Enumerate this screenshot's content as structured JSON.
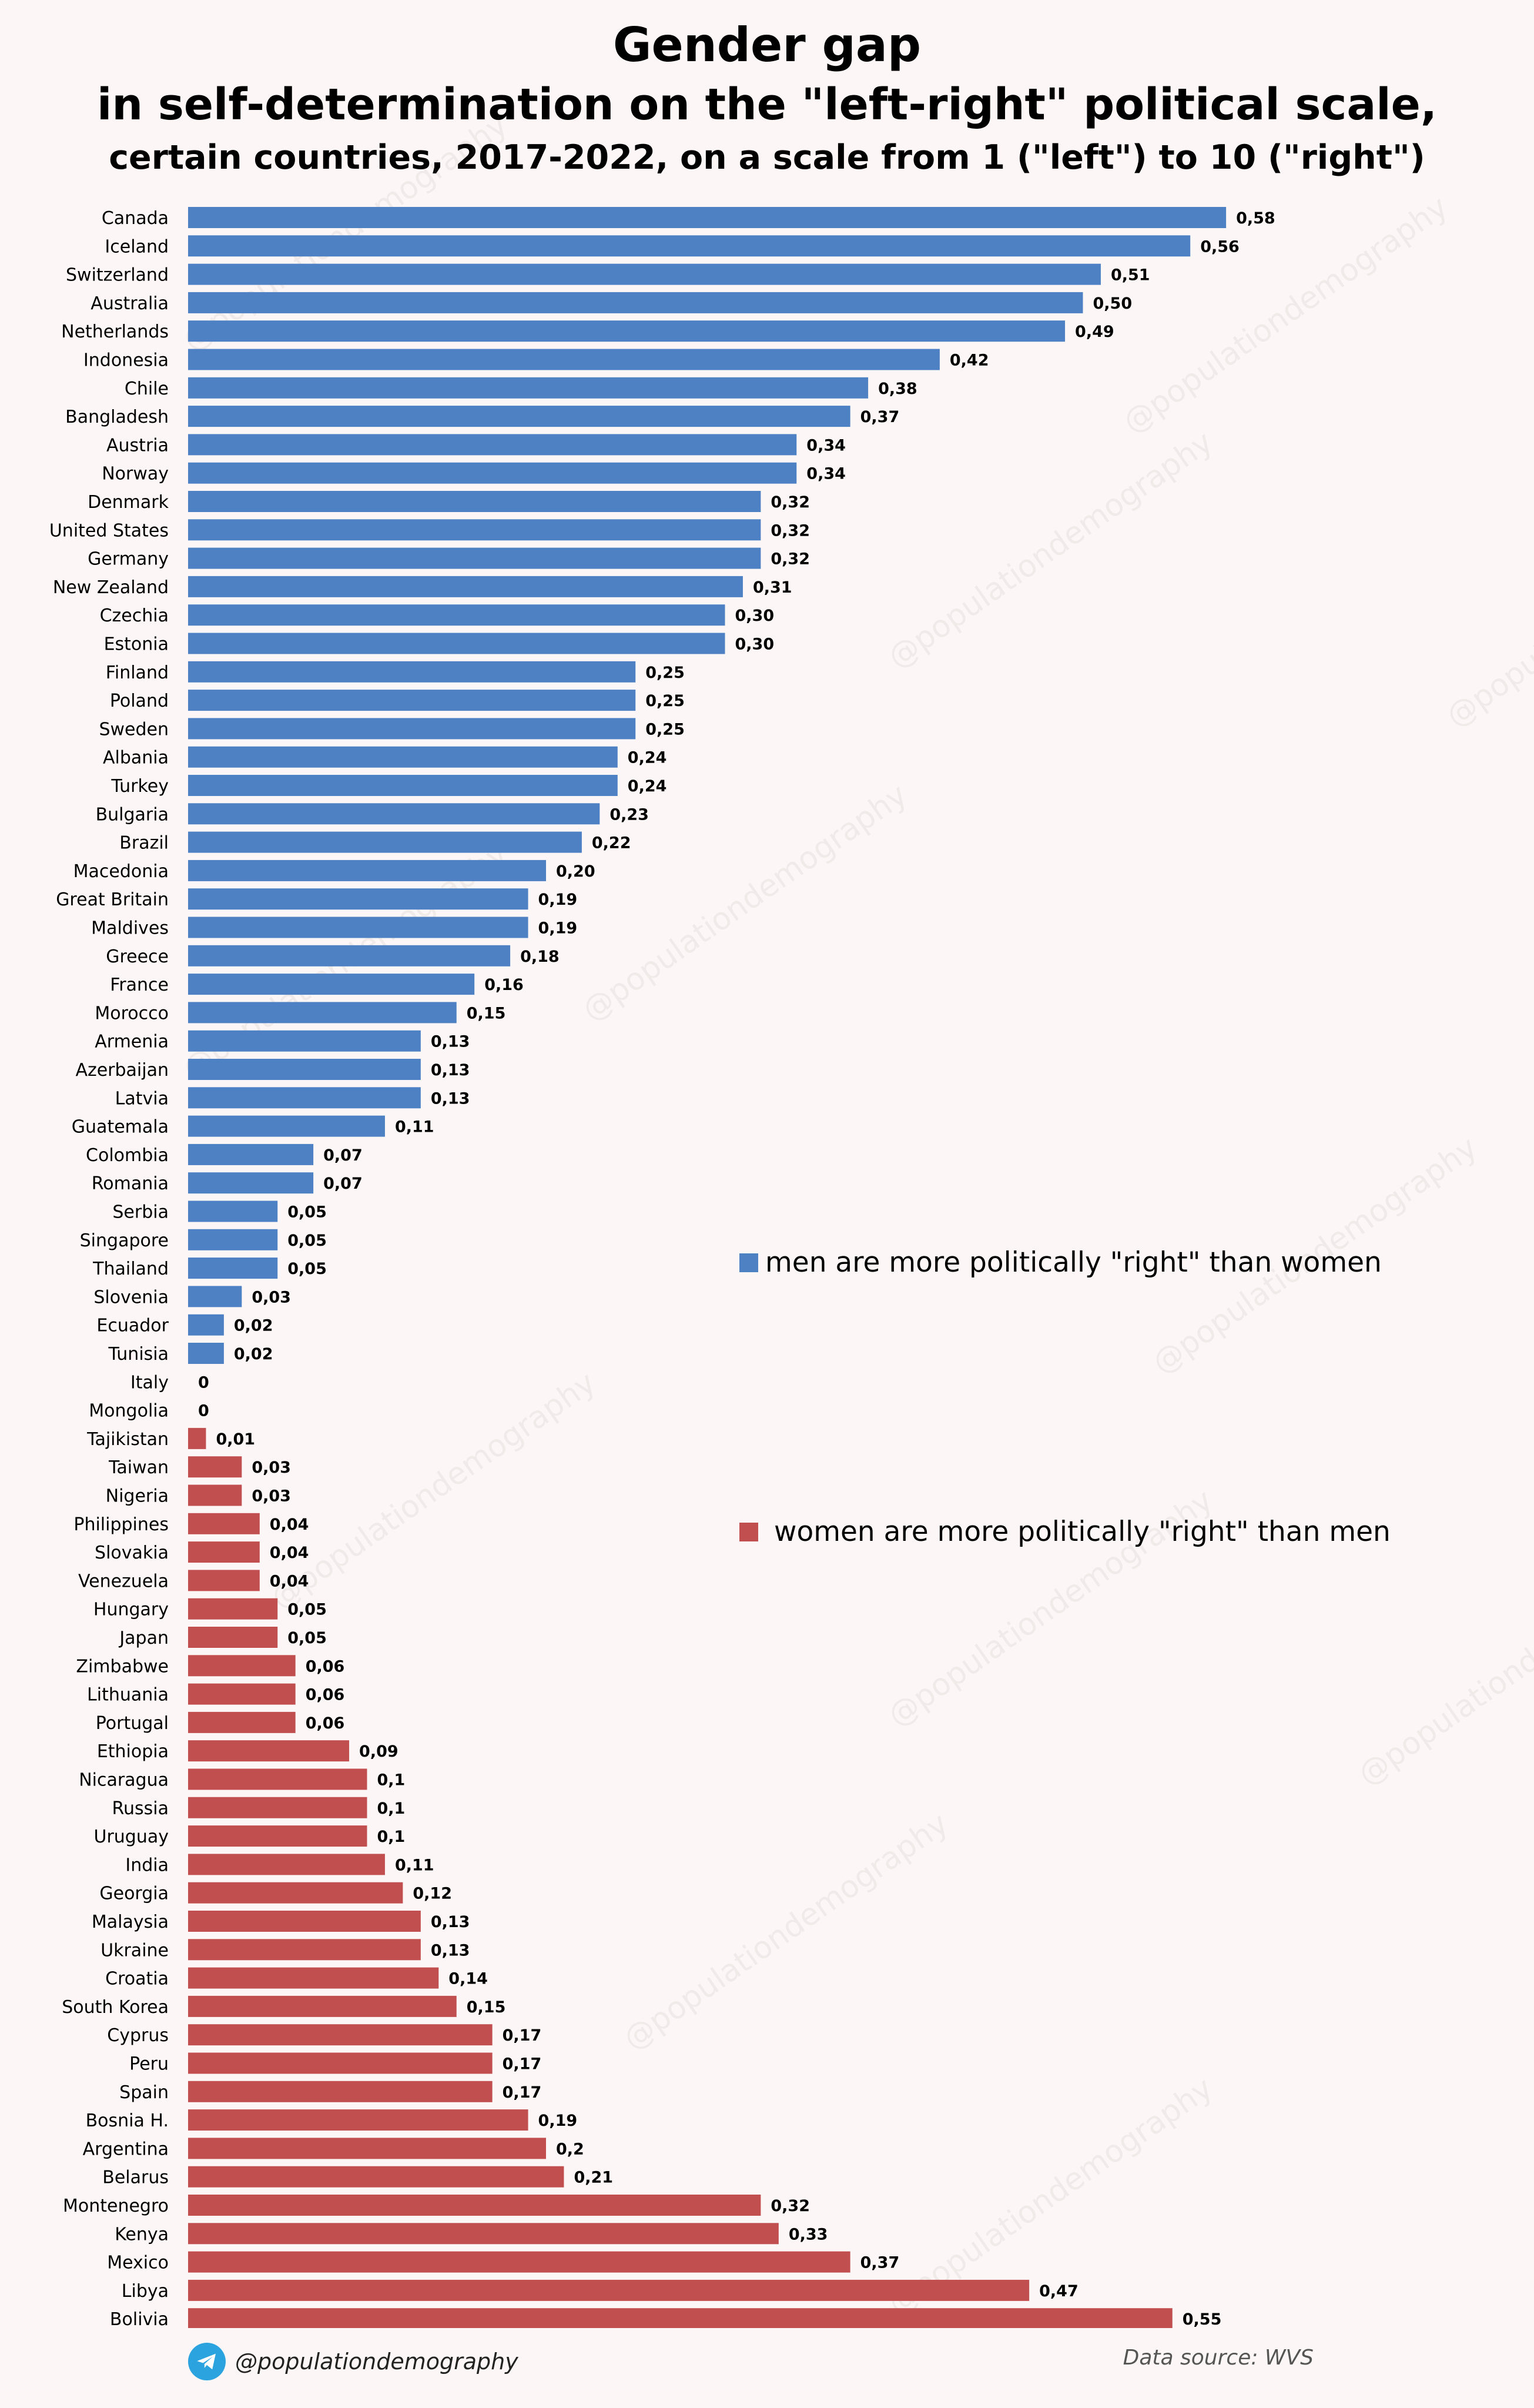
{
  "chart_data": {
    "type": "bar",
    "orientation": "horizontal",
    "title": "Gender gap",
    "subtitle": "in self-determination on the \"left-right\" political scale,",
    "subtitle2": "certain countries, 2017-2022, on a scale from 1 (\"left\") to 10 (\"right\")",
    "xlim": [
      0,
      0.6
    ],
    "grid": false,
    "series": [
      {
        "name": "men are more politically \"right\" than women",
        "color": "#4e81c3",
        "categories": [
          "Canada",
          "Iceland",
          "Switzerland",
          "Australia",
          "Netherlands",
          "Indonesia",
          "Chile",
          "Bangladesh",
          "Austria",
          "Norway",
          "Denmark",
          "United States",
          "Germany",
          "New Zealand",
          "Czechia",
          "Estonia",
          "Finland",
          "Poland",
          "Sweden",
          "Albania",
          "Turkey",
          "Bulgaria",
          "Brazil",
          "Macedonia",
          "Great Britain",
          "Maldives",
          "Greece",
          "France",
          "Morocco",
          "Armenia",
          "Azerbaijan",
          "Latvia",
          "Guatemala",
          "Colombia",
          "Romania",
          "Serbia",
          "Singapore",
          "Thailand",
          "Slovenia",
          "Ecuador",
          "Tunisia",
          "Italy",
          "Mongolia"
        ],
        "values": [
          0.58,
          0.56,
          0.51,
          0.5,
          0.49,
          0.42,
          0.38,
          0.37,
          0.34,
          0.34,
          0.32,
          0.32,
          0.32,
          0.31,
          0.3,
          0.3,
          0.25,
          0.25,
          0.25,
          0.24,
          0.24,
          0.23,
          0.22,
          0.2,
          0.19,
          0.19,
          0.18,
          0.16,
          0.15,
          0.13,
          0.13,
          0.13,
          0.11,
          0.07,
          0.07,
          0.05,
          0.05,
          0.05,
          0.03,
          0.02,
          0.02,
          0,
          0
        ],
        "labels": [
          "0,58",
          "0,56",
          "0,51",
          "0,50",
          "0,49",
          "0,42",
          "0,38",
          "0,37",
          "0,34",
          "0,34",
          "0,32",
          "0,32",
          "0,32",
          "0,31",
          "0,30",
          "0,30",
          "0,25",
          "0,25",
          "0,25",
          "0,24",
          "0,24",
          "0,23",
          "0,22",
          "0,20",
          "0,19",
          "0,19",
          "0,18",
          "0,16",
          "0,15",
          "0,13",
          "0,13",
          "0,13",
          "0,11",
          "0,07",
          "0,07",
          "0,05",
          "0,05",
          "0,05",
          "0,03",
          "0,02",
          "0,02",
          "0",
          "0"
        ]
      },
      {
        "name": "women are more politically \"right\" than men",
        "color": "#c24f50",
        "categories": [
          "Tajikistan",
          "Taiwan",
          "Nigeria",
          "Philippines",
          "Slovakia",
          "Venezuela",
          "Hungary",
          "Japan",
          "Zimbabwe",
          "Lithuania",
          "Portugal",
          "Ethiopia",
          "Nicaragua",
          "Russia",
          "Uruguay",
          "India",
          "Georgia",
          "Malaysia",
          "Ukraine",
          "Croatia",
          "South Korea",
          "Cyprus",
          "Peru",
          "Spain",
          "Bosnia H.",
          "Argentina",
          "Belarus",
          "Montenegro",
          "Kenya",
          "Mexico",
          "Libya",
          "Bolivia"
        ],
        "values": [
          0.01,
          0.03,
          0.03,
          0.04,
          0.04,
          0.04,
          0.05,
          0.05,
          0.06,
          0.06,
          0.06,
          0.09,
          0.1,
          0.1,
          0.1,
          0.11,
          0.12,
          0.13,
          0.13,
          0.14,
          0.15,
          0.17,
          0.17,
          0.17,
          0.19,
          0.2,
          0.21,
          0.32,
          0.33,
          0.37,
          0.47,
          0.55
        ],
        "labels": [
          "0,01",
          "0,03",
          "0,03",
          "0,04",
          "0,04",
          "0,04",
          "0,05",
          "0,05",
          "0,06",
          "0,06",
          "0,06",
          "0,09",
          "0,1",
          "0,1",
          "0,1",
          "0,11",
          "0,12",
          "0,13",
          "0,13",
          "0,14",
          "0,15",
          "0,17",
          "0,17",
          "0,17",
          "0,19",
          "0,2",
          "0,21",
          "0,32",
          "0,33",
          "0,37",
          "0,47",
          "0,55"
        ]
      }
    ]
  },
  "footer": {
    "handle": "@populationdemography",
    "source": "Data source:  WVS"
  },
  "watermark_text": "@populationdemography"
}
